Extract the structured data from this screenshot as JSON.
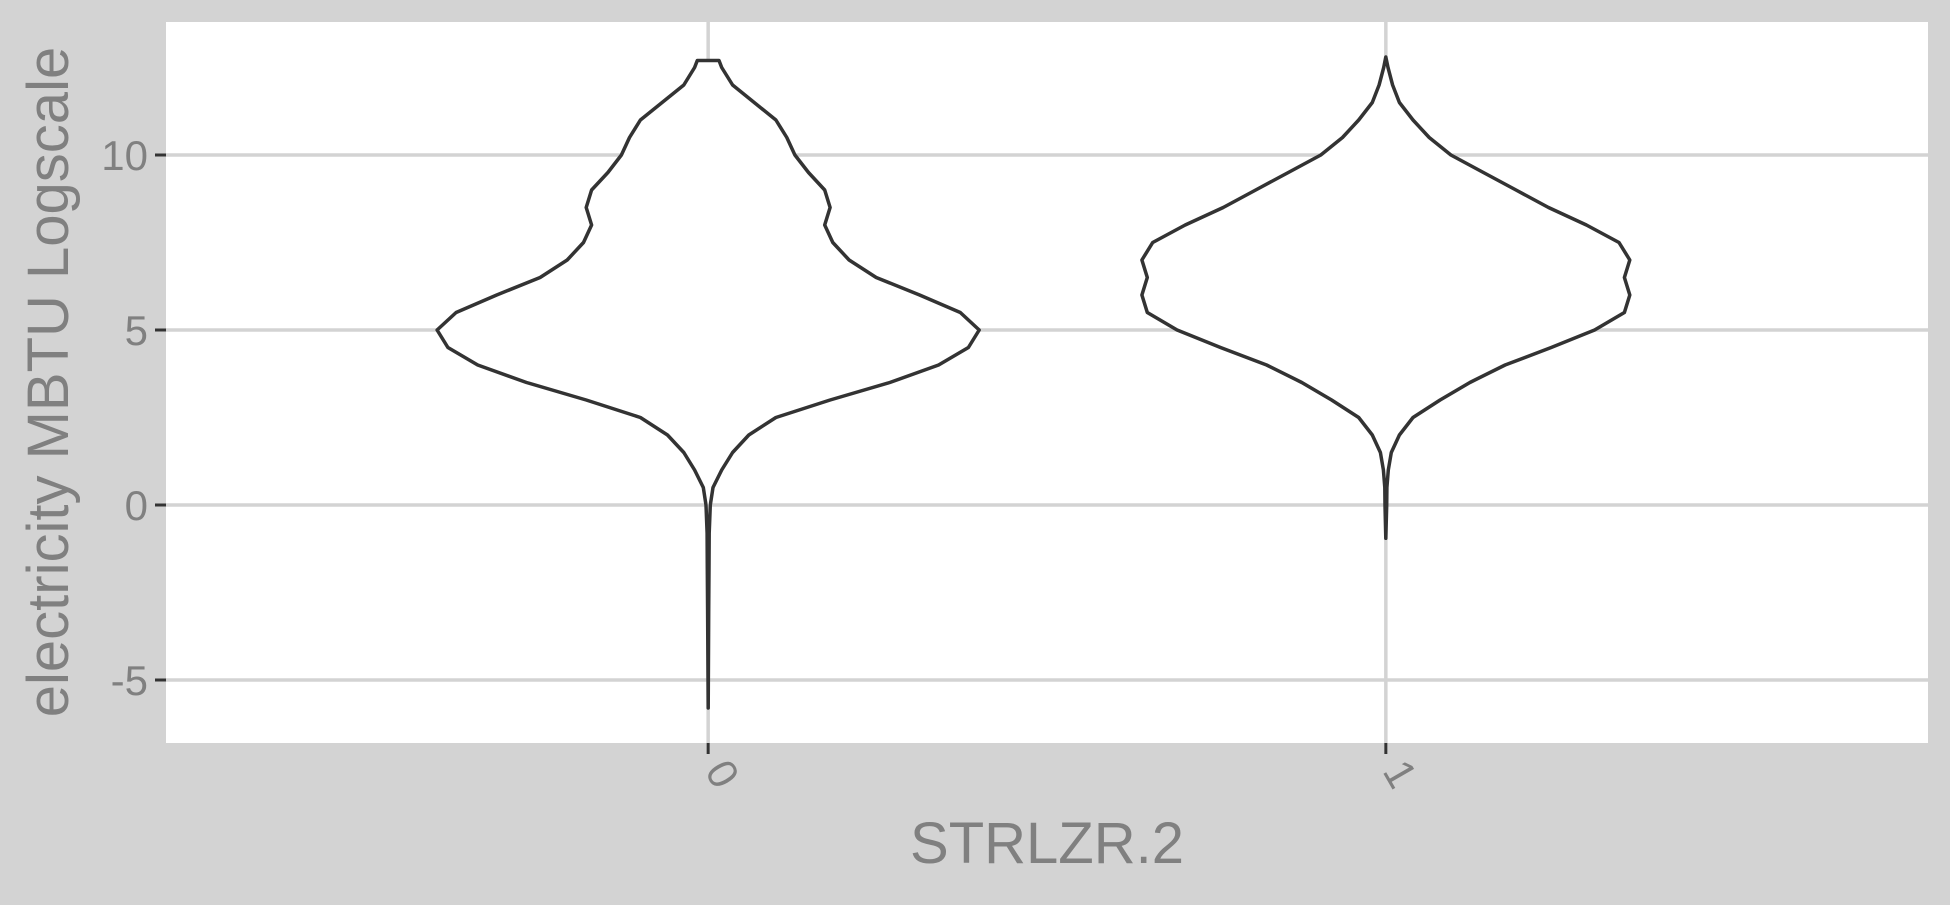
{
  "chart_data": {
    "type": "violin",
    "title": "",
    "xlabel": "STRLZR.2",
    "ylabel": "electricity MBTU Logscale",
    "categories": [
      "0",
      "1"
    ],
    "y_ticks": [
      -5,
      0,
      5,
      10
    ],
    "ylim": [
      -6.8,
      13.8
    ],
    "grid": true,
    "colors": {
      "plot_bg": "#ffffff",
      "outer_bg": "#d3d3d3",
      "grid": "#d3d3d3",
      "outline": "#333333",
      "text": "#808080"
    },
    "series": [
      {
        "category": "0",
        "y_range": [
          -5.8,
          12.7
        ],
        "density": [
          [
            -5.8,
            0.0
          ],
          [
            -3.0,
            0.002
          ],
          [
            -1.8,
            0.003
          ],
          [
            -0.8,
            0.004
          ],
          [
            0.0,
            0.008
          ],
          [
            0.5,
            0.018
          ],
          [
            1.0,
            0.05
          ],
          [
            1.5,
            0.09
          ],
          [
            2.0,
            0.15
          ],
          [
            2.5,
            0.25
          ],
          [
            3.0,
            0.45
          ],
          [
            3.5,
            0.67
          ],
          [
            4.0,
            0.85
          ],
          [
            4.5,
            0.96
          ],
          [
            5.0,
            1.0
          ],
          [
            5.5,
            0.93
          ],
          [
            6.0,
            0.78
          ],
          [
            6.5,
            0.62
          ],
          [
            7.0,
            0.52
          ],
          [
            7.5,
            0.46
          ],
          [
            8.0,
            0.43
          ],
          [
            8.5,
            0.45
          ],
          [
            9.0,
            0.43
          ],
          [
            9.5,
            0.37
          ],
          [
            10.0,
            0.32
          ],
          [
            10.5,
            0.29
          ],
          [
            11.0,
            0.25
          ],
          [
            11.5,
            0.17
          ],
          [
            12.0,
            0.09
          ],
          [
            12.5,
            0.05
          ],
          [
            12.7,
            0.04
          ]
        ]
      },
      {
        "category": "1",
        "y_range": [
          -0.95,
          12.8
        ],
        "density": [
          [
            -0.95,
            0.0
          ],
          [
            0.0,
            0.003
          ],
          [
            0.5,
            0.004
          ],
          [
            1.0,
            0.009
          ],
          [
            1.5,
            0.02
          ],
          [
            2.0,
            0.05
          ],
          [
            2.5,
            0.1
          ],
          [
            3.0,
            0.2
          ],
          [
            3.5,
            0.31
          ],
          [
            4.0,
            0.44
          ],
          [
            4.5,
            0.61
          ],
          [
            5.0,
            0.77
          ],
          [
            5.5,
            0.88
          ],
          [
            6.0,
            0.9
          ],
          [
            6.5,
            0.88
          ],
          [
            7.0,
            0.9
          ],
          [
            7.5,
            0.86
          ],
          [
            8.0,
            0.74
          ],
          [
            8.5,
            0.6
          ],
          [
            9.0,
            0.48
          ],
          [
            9.5,
            0.36
          ],
          [
            10.0,
            0.24
          ],
          [
            10.5,
            0.16
          ],
          [
            11.0,
            0.1
          ],
          [
            11.5,
            0.05
          ],
          [
            12.0,
            0.025
          ],
          [
            12.5,
            0.008
          ],
          [
            12.8,
            0.0
          ]
        ]
      }
    ]
  }
}
